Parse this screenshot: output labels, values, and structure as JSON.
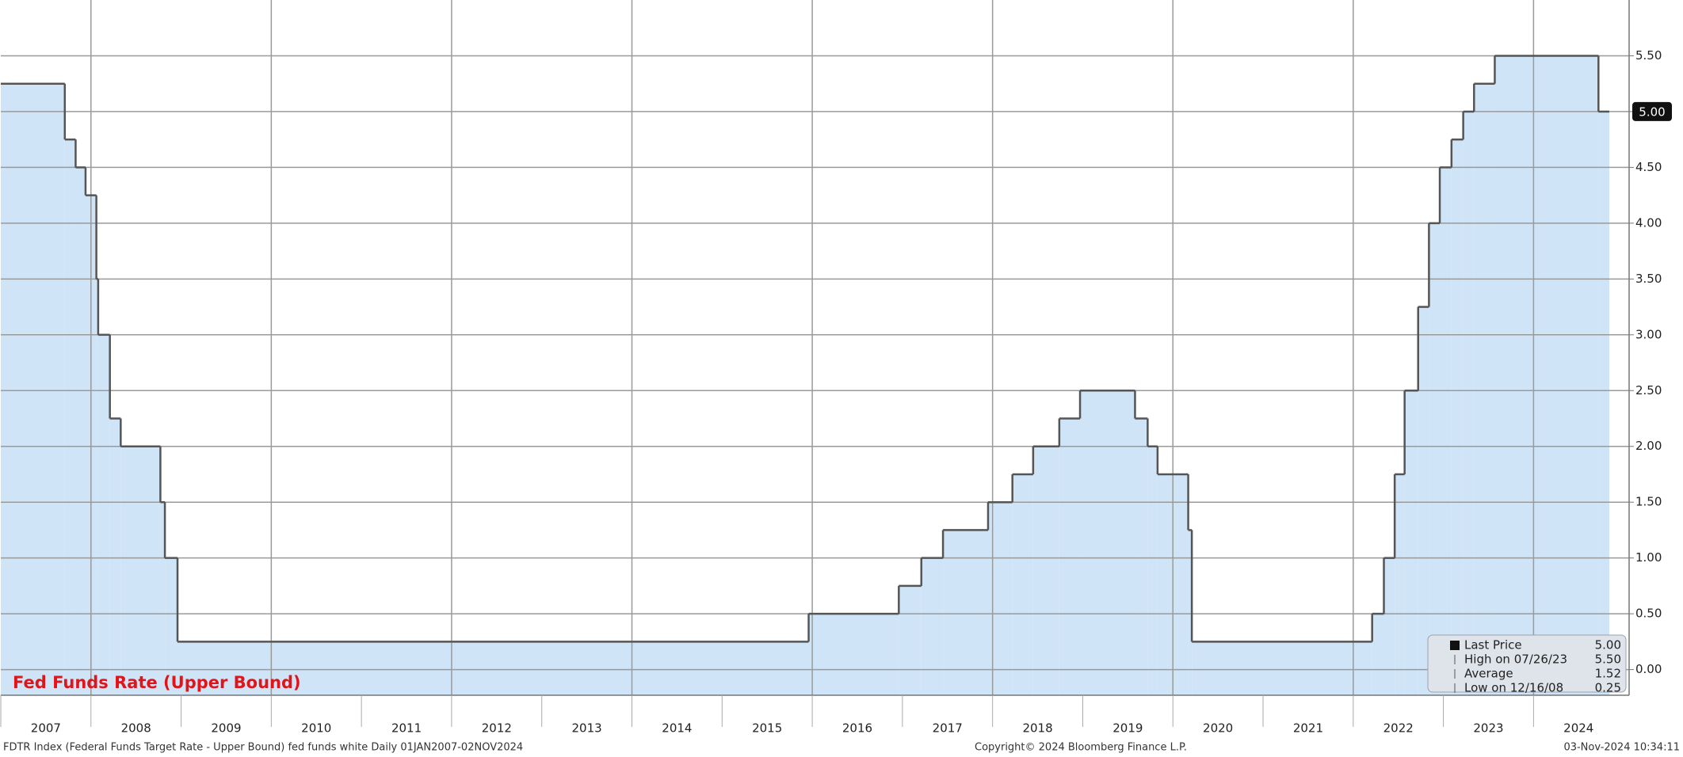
{
  "chart_data": {
    "type": "step-area",
    "title": "Fed Funds Rate (Upper Bound)",
    "x": [
      2007.0,
      2007.71,
      2007.83,
      2007.94,
      2008.06,
      2008.08,
      2008.21,
      2008.33,
      2008.77,
      2008.82,
      2008.96,
      2015.96,
      2016.96,
      2017.21,
      2017.45,
      2017.95,
      2018.22,
      2018.45,
      2018.74,
      2018.97,
      2019.58,
      2019.72,
      2019.83,
      2020.17,
      2020.21,
      2022.21,
      2022.34,
      2022.46,
      2022.57,
      2022.72,
      2022.84,
      2022.96,
      2023.09,
      2023.22,
      2023.34,
      2023.57,
      2024.72,
      2024.84
    ],
    "values": [
      5.25,
      4.75,
      4.5,
      4.25,
      3.5,
      3.0,
      2.25,
      2.0,
      1.5,
      1.0,
      0.25,
      0.5,
      0.75,
      1.0,
      1.25,
      1.5,
      1.75,
      2.0,
      2.25,
      2.5,
      2.25,
      2.0,
      1.75,
      1.25,
      0.25,
      0.5,
      1.0,
      1.75,
      2.5,
      3.25,
      4.0,
      4.5,
      4.75,
      5.0,
      5.25,
      5.5,
      5.0,
      5.0
    ],
    "color": "#cfe4f6",
    "line_color": "#555555",
    "xlim": [
      2007,
      2025.06
    ],
    "xticks": [
      2007,
      2008,
      2009,
      2010,
      2011,
      2012,
      2013,
      2014,
      2015,
      2016,
      2017,
      2018,
      2019,
      2020,
      2021,
      2022,
      2023,
      2024
    ],
    "ylim": [
      -0.23,
      6
    ],
    "yticks": [
      {
        "value": 0,
        "label": "0.00"
      },
      {
        "value": 0.5,
        "label": "0.50"
      },
      {
        "value": 1,
        "label": "1.00"
      },
      {
        "value": 1.5,
        "label": "1.50"
      },
      {
        "value": 2,
        "label": "2.00"
      },
      {
        "value": 2.5,
        "label": "2.50"
      },
      {
        "value": 3,
        "label": "3.00"
      },
      {
        "value": 3.5,
        "label": "3.50"
      },
      {
        "value": 4,
        "label": "4.00"
      },
      {
        "value": 4.5,
        "label": "4.50"
      },
      {
        "value": 5,
        "label": "5.00"
      },
      {
        "value": 5.5,
        "label": "5.50"
      }
    ],
    "grid": true,
    "stats": [
      {
        "label": "Last Price",
        "text": "5.00"
      },
      {
        "label": "High on 07/26/23",
        "text": "5.50"
      },
      {
        "label": "Average",
        "text": "1.52"
      },
      {
        "label": "Low on 12/16/08",
        "text": "0.25"
      }
    ],
    "footer_left": "FDTR Index (Federal Funds Target Rate - Upper Bound) fed funds white  Daily 01JAN2007-02NOV2024",
    "footer_center": "Copyright© 2024 Bloomberg Finance L.P.",
    "footer_right": "03-Nov-2024 10:34:11"
  }
}
